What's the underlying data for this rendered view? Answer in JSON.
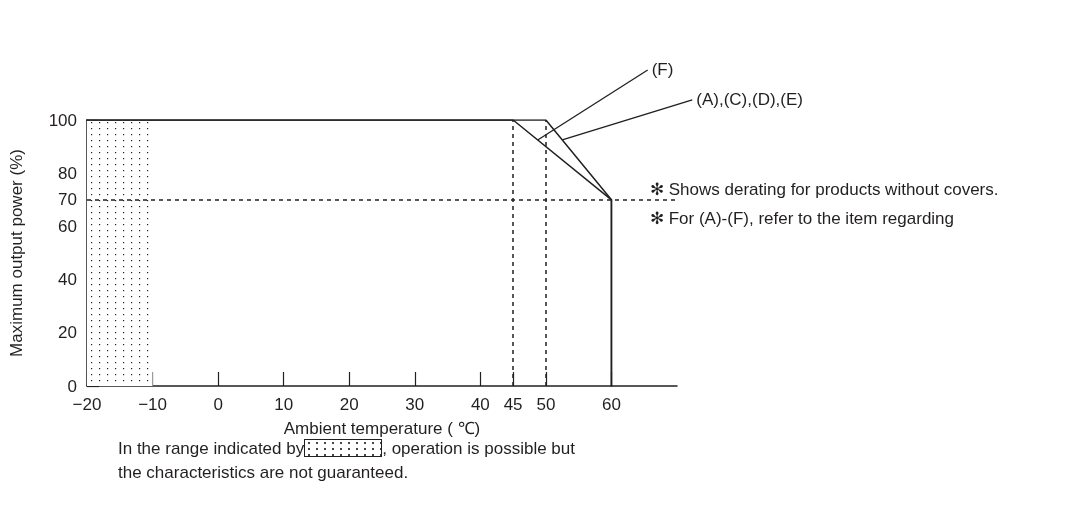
{
  "chart_data": {
    "type": "line",
    "xlabel": "Ambient temperature ( ℃)",
    "ylabel": "Maximum output power (%)",
    "xlim": [
      -20,
      70
    ],
    "xticks": [
      {
        "value": -20,
        "label": "−20"
      },
      {
        "value": -10,
        "label": "−10"
      },
      0,
      10,
      20,
      30,
      40,
      45,
      50,
      60
    ],
    "ylim": [
      0,
      100
    ],
    "yticks": [
      0,
      20,
      40,
      60,
      70,
      80,
      100
    ],
    "series": [
      {
        "name": "(F)",
        "color": "#231f20",
        "x": [
          -20,
          45,
          60,
          60
        ],
        "values": [
          100,
          100,
          70,
          0
        ]
      },
      {
        "name": "(A),(C),(D),(E)",
        "color": "#231f20",
        "x": [
          -20,
          50,
          60,
          60
        ],
        "values": [
          100,
          100,
          70,
          0
        ]
      }
    ],
    "ref_lines": [
      {
        "axis": "x",
        "value": 45,
        "label": null,
        "color": "#231f20",
        "line_style": "dashed"
      },
      {
        "axis": "x",
        "value": 50,
        "label": null,
        "color": "#231f20",
        "line_style": "dashed"
      },
      {
        "axis": "y",
        "value": 70,
        "label": null,
        "color": "#231f20",
        "line_style": "dashed"
      }
    ],
    "bands": [
      {
        "axis": "x",
        "from": -20,
        "to": -10,
        "label": null,
        "color": "#231f20"
      }
    ],
    "annotations": [
      "In the range indicated by",
      ", operation is possible but the characteristics are not guaranteed.",
      "✻ Shows derating for products without covers.",
      "✻ For (A)-(F), refer to the item regarding"
    ],
    "grid": false,
    "legend": false,
    "marker": "none",
    "line_style": "solid"
  }
}
